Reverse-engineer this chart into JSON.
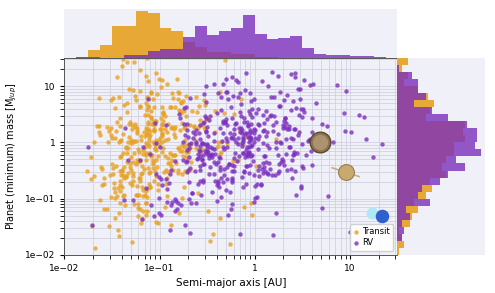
{
  "xlabel": "Semi-major axis [AU]",
  "ylabel": "Planet (minimum) mass [M$_{Jup}$]",
  "xlim_log": [
    -2,
    1.5
  ],
  "ylim_log": [
    -2,
    1.5
  ],
  "rv_color": "#7B2FBE",
  "transit_color": "#E8A020",
  "bg_color": "#F0F0F8",
  "grid_color": "#CCCCDD",
  "alpha_scatter": 0.8,
  "marker_size_pts": 10,
  "hist_bins": 28,
  "legend_labels": [
    "RV",
    "Transit"
  ],
  "rv_seed": 42,
  "transit_seed": 77
}
